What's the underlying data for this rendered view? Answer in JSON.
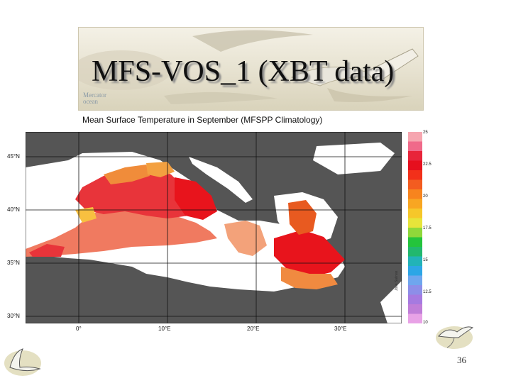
{
  "slide": {
    "title": "MFS-VOS_1 (XBT data)",
    "page_number": "36",
    "banner_logo_text": "Mercator\nocean"
  },
  "map": {
    "title": "Mean Surface Temperature in September (MFSPP Climatology)",
    "latitude_labels": [
      "45°N",
      "40°N",
      "35°N",
      "30°N"
    ],
    "longitude_labels": [
      "0°",
      "10°E",
      "20°E",
      "30°E"
    ],
    "colorbar_labels": [
      "25",
      "22.5",
      "20",
      "17.5",
      "15",
      "12.5",
      "10"
    ],
    "credit": "Jose Salinas",
    "colors": {
      "land": "#555555",
      "sea_no_data": "#ffffff",
      "warm": "#e8141c",
      "mid": "#e8705a",
      "cool": "#f3a27a"
    },
    "colorbar_colors": [
      "#f6a6b0",
      "#f06a8a",
      "#e8243a",
      "#e60f1e",
      "#f2301a",
      "#f35c20",
      "#f7841e",
      "#f8a622",
      "#f6c72a",
      "#e7e43a",
      "#8fd83a",
      "#24c43c",
      "#22b86e",
      "#22b3b8",
      "#2da6e6",
      "#6fa6ee",
      "#8d8ee8",
      "#a67ae0",
      "#c07ed8",
      "#e8a2e6"
    ]
  }
}
